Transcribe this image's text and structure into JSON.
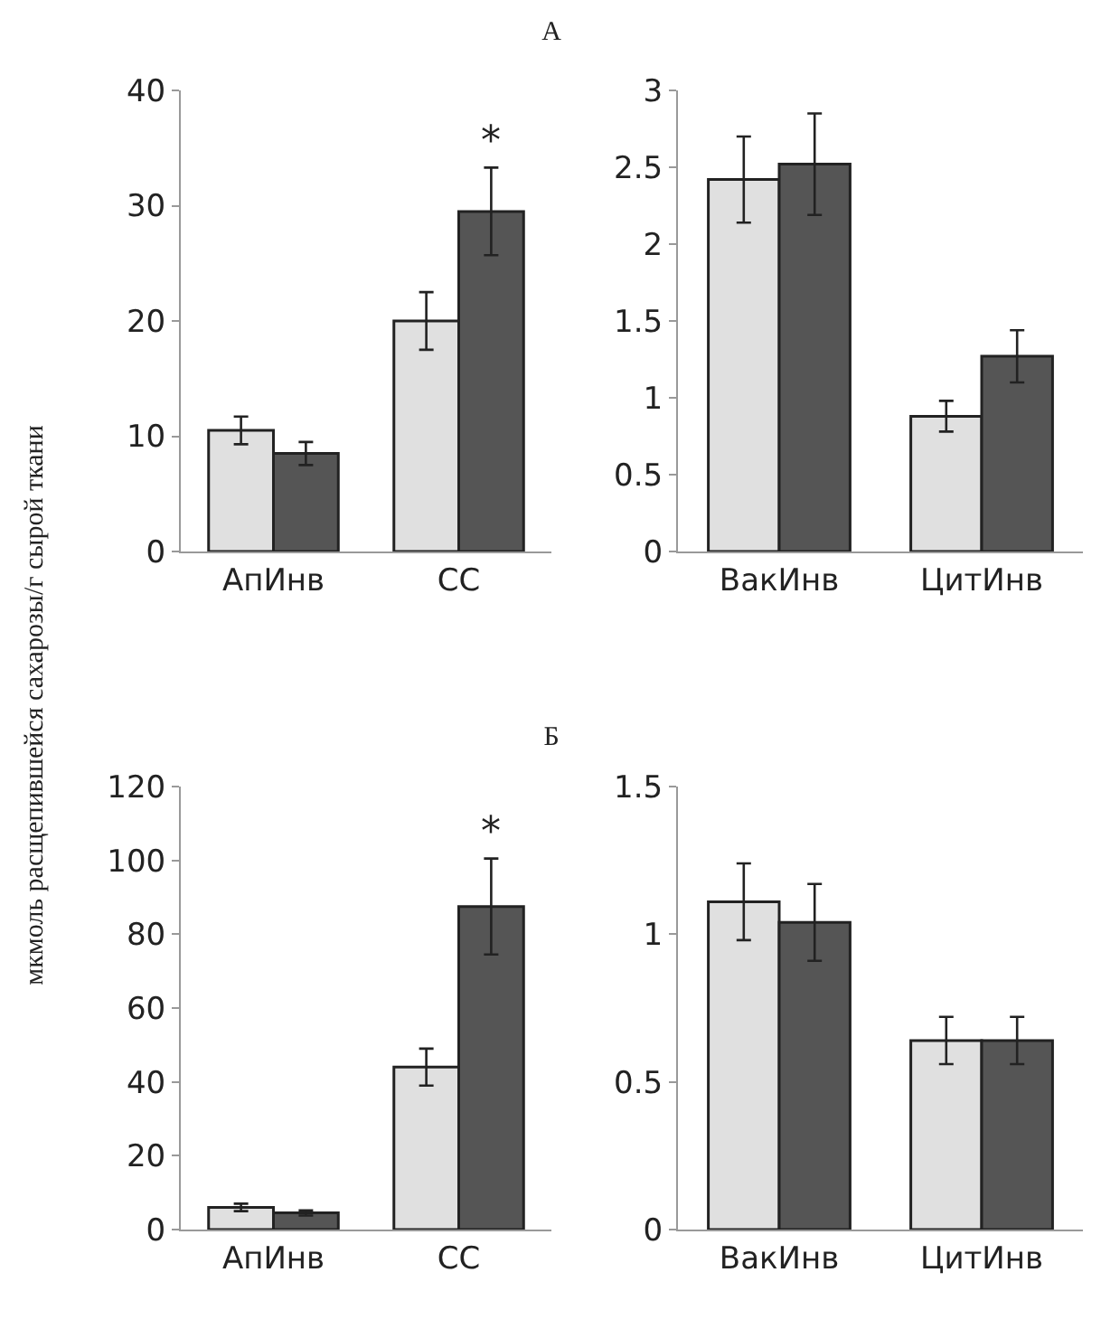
{
  "chart_data": [
    {
      "type": "bar",
      "title": "А",
      "ylabel": "мкмоль расщепившейся сахарозы/г сырой ткани",
      "categories": [
        "АпИнв",
        "СС"
      ],
      "ylim": [
        0,
        40
      ],
      "yticks": [
        0,
        10,
        20,
        30,
        40
      ],
      "grid": false,
      "series": [
        {
          "color": "#e0e0e0",
          "values": [
            10.5,
            20
          ],
          "errors": [
            1.2,
            2.5
          ]
        },
        {
          "color": "#555555",
          "values": [
            8.5,
            29.5
          ],
          "errors": [
            1,
            3.8
          ]
        }
      ],
      "annotations": [
        {
          "text": "*",
          "x": "СС",
          "y": 29.5
        }
      ]
    },
    {
      "type": "bar",
      "categories": [
        "ВакИнв",
        "ЦитИнв"
      ],
      "ylim": [
        0,
        3
      ],
      "yticks": [
        0,
        0.5,
        1,
        1.5,
        2,
        2.5,
        3
      ],
      "grid": false,
      "series": [
        {
          "color": "#e0e0e0",
          "values": [
            2.42,
            0.88
          ],
          "errors": [
            0.28,
            0.1
          ]
        },
        {
          "color": "#555555",
          "values": [
            2.52,
            1.27
          ],
          "errors": [
            0.33,
            0.17
          ]
        }
      ]
    },
    {
      "type": "bar",
      "title": "Б",
      "categories": [
        "АпИнв",
        "СС"
      ],
      "ylim": [
        0,
        120
      ],
      "yticks": [
        0,
        20,
        40,
        60,
        80,
        100,
        120
      ],
      "grid": false,
      "series": [
        {
          "color": "#e0e0e0",
          "values": [
            6,
            44
          ],
          "errors": [
            1,
            5
          ]
        },
        {
          "color": "#555555",
          "values": [
            4.5,
            87.5
          ],
          "errors": [
            0.7,
            13
          ]
        }
      ],
      "annotations": [
        {
          "text": "*",
          "x": "СС",
          "y": 87.5
        }
      ]
    },
    {
      "type": "bar",
      "categories": [
        "ВакИнв",
        "ЦитИнв"
      ],
      "ylim": [
        0,
        1.5
      ],
      "yticks": [
        0,
        0.5,
        1,
        1.5
      ],
      "grid": false,
      "series": [
        {
          "color": "#e0e0e0",
          "values": [
            1.11,
            0.64
          ],
          "errors": [
            0.13,
            0.08
          ]
        },
        {
          "color": "#555555",
          "values": [
            1.04,
            0.64
          ],
          "errors": [
            0.13,
            0.08
          ]
        }
      ]
    }
  ]
}
